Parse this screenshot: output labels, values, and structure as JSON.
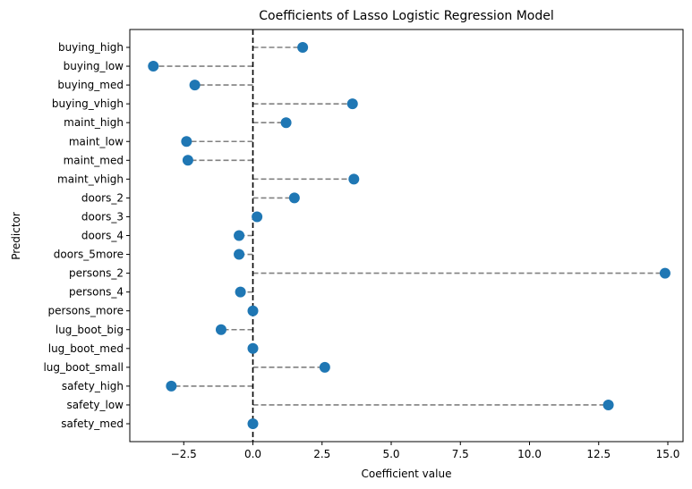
{
  "chart_data": {
    "type": "scatter",
    "title": "Coefficients of Lasso Logistic Regression Model",
    "xlabel": "Coefficient value",
    "ylabel": "Predictor",
    "xlim": [
      -4.45,
      15.55
    ],
    "xticks": [
      -2.5,
      0.0,
      2.5,
      5.0,
      7.5,
      10.0,
      12.5,
      15.0
    ],
    "xtick_labels": [
      "−2.5",
      "0.0",
      "2.5",
      "5.0",
      "7.5",
      "10.0",
      "12.5",
      "15.0"
    ],
    "reference_line": 0,
    "grid": false,
    "colors": {
      "marker": "#1f77b4",
      "stem": "#808080",
      "reference": "#000000"
    },
    "categories": [
      "buying_high",
      "buying_low",
      "buying_med",
      "buying_vhigh",
      "maint_high",
      "maint_low",
      "maint_med",
      "maint_vhigh",
      "doors_2",
      "doors_3",
      "doors_4",
      "doors_5more",
      "persons_2",
      "persons_4",
      "persons_more",
      "lug_boot_big",
      "lug_boot_med",
      "lug_boot_small",
      "safety_high",
      "safety_low",
      "safety_med"
    ],
    "values": [
      1.8,
      -3.6,
      -2.1,
      3.6,
      1.2,
      -2.4,
      -2.35,
      3.65,
      1.5,
      0.15,
      -0.5,
      -0.5,
      14.9,
      -0.45,
      0.0,
      -1.15,
      0.0,
      2.6,
      -2.95,
      12.85,
      0.0
    ]
  }
}
